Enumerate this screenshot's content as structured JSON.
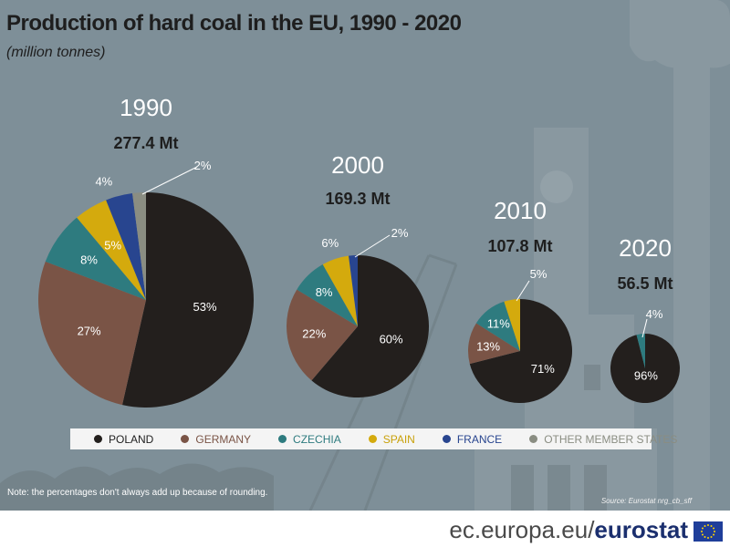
{
  "title": "Production of hard coal in the EU, 1990 - 2020",
  "subtitle": "(million tonnes)",
  "note": "Note: the percentages don't always add up because of rounding.",
  "source": "Source: Eurostat nrg_cb_sff",
  "footer": {
    "site_prefix": "ec.europa.eu/",
    "site_brand": "eurostat",
    "flag_icon": "eu-flag-icon"
  },
  "colors": {
    "POLAND": "#231f1d",
    "GERMANY": "#7a5446",
    "CZECHIA": "#2e7b7f",
    "SPAIN": "#d4aa0d",
    "FRANCE": "#28458f",
    "OTHER MEMBER STATES": "#8a8d82"
  },
  "legend": [
    "POLAND",
    "GERMANY",
    "CZECHIA",
    "SPAIN",
    "FRANCE",
    "OTHER MEMBER STATES"
  ],
  "legend_text_colors": {
    "POLAND": "#222222",
    "GERMANY": "#7a5446",
    "CZECHIA": "#2e7b7f",
    "SPAIN": "#c9a10a",
    "FRANCE": "#28458f",
    "OTHER MEMBER STATES": "#8a8d82"
  },
  "chart_data": {
    "type": "pie",
    "unit": "Mt",
    "charts": [
      {
        "year": "1990",
        "total": "277.4 Mt",
        "total_value": 277.4,
        "slices": [
          {
            "name": "POLAND",
            "value": 53,
            "label": "53%"
          },
          {
            "name": "GERMANY",
            "value": 27,
            "label": "27%"
          },
          {
            "name": "CZECHIA",
            "value": 8,
            "label": "8%"
          },
          {
            "name": "SPAIN",
            "value": 5,
            "label": "5%"
          },
          {
            "name": "FRANCE",
            "value": 4,
            "label": "4%"
          },
          {
            "name": "OTHER MEMBER STATES",
            "value": 2,
            "label": "2%"
          }
        ]
      },
      {
        "year": "2000",
        "total": "169.3 Mt",
        "total_value": 169.3,
        "slices": [
          {
            "name": "POLAND",
            "value": 60,
            "label": "60%"
          },
          {
            "name": "GERMANY",
            "value": 22,
            "label": "22%"
          },
          {
            "name": "CZECHIA",
            "value": 8,
            "label": "8%"
          },
          {
            "name": "SPAIN",
            "value": 6,
            "label": "6%"
          },
          {
            "name": "FRANCE",
            "value": 2,
            "label": "2%"
          }
        ]
      },
      {
        "year": "2010",
        "total": "107.8 Mt",
        "total_value": 107.8,
        "slices": [
          {
            "name": "POLAND",
            "value": 71,
            "label": "71%"
          },
          {
            "name": "GERMANY",
            "value": 13,
            "label": "13%"
          },
          {
            "name": "CZECHIA",
            "value": 11,
            "label": "11%"
          },
          {
            "name": "SPAIN",
            "value": 5,
            "label": "5%"
          }
        ]
      },
      {
        "year": "2020",
        "total": "56.5 Mt",
        "total_value": 56.5,
        "slices": [
          {
            "name": "POLAND",
            "value": 96,
            "label": "96%"
          },
          {
            "name": "CZECHIA",
            "value": 4,
            "label": "4%"
          }
        ]
      }
    ]
  }
}
